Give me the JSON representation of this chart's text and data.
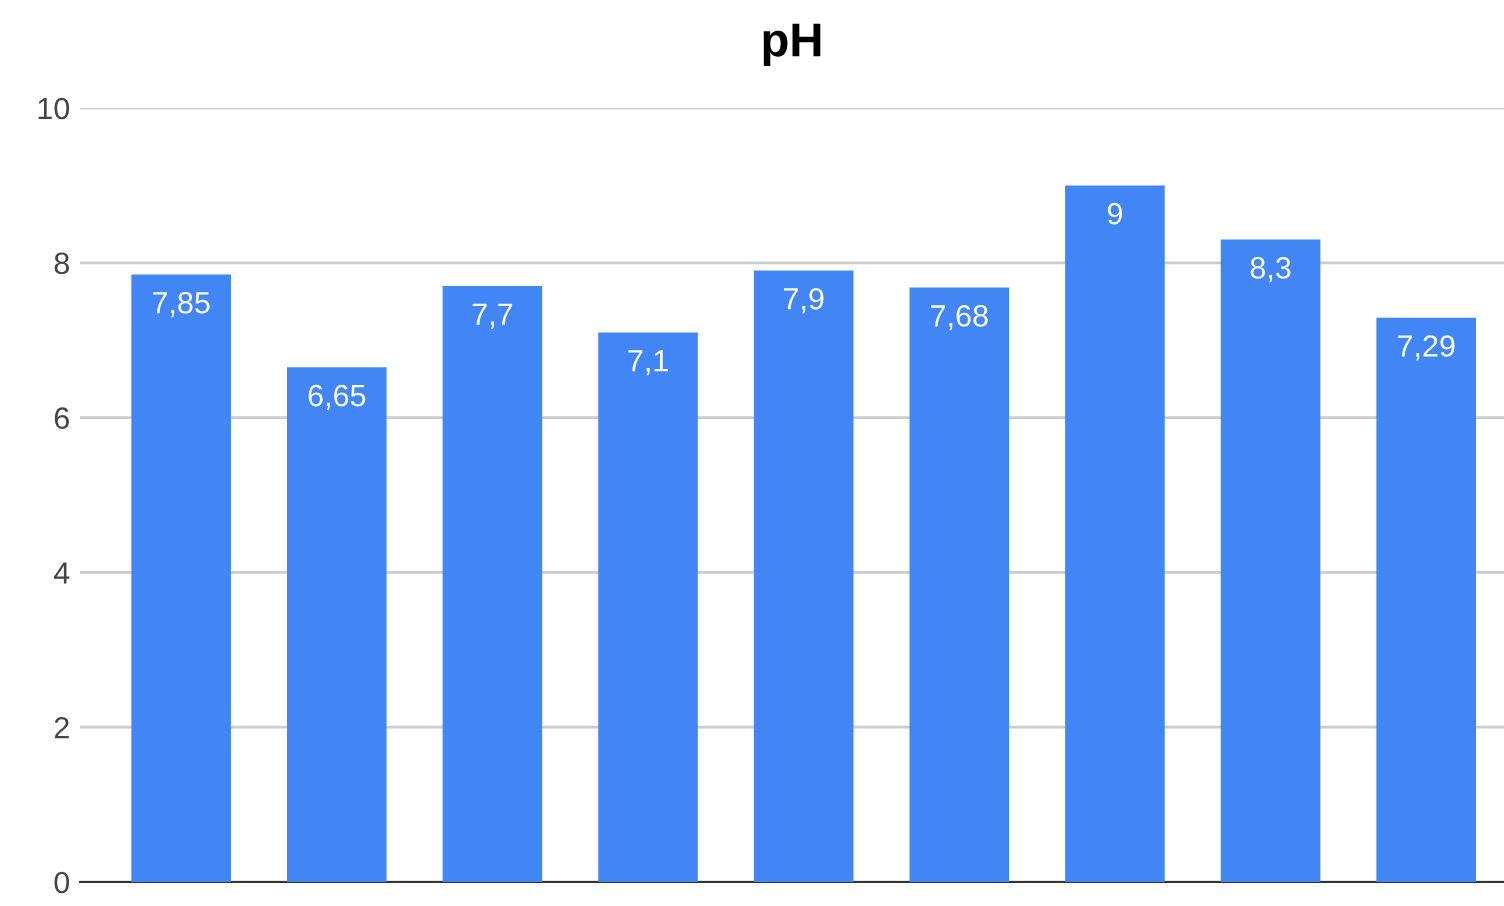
{
  "chart_data": {
    "type": "bar",
    "title": "pH",
    "categories": [
      null,
      null,
      null,
      null,
      null,
      null,
      null,
      null,
      null
    ],
    "values": [
      7.85,
      6.65,
      7.7,
      7.1,
      7.9,
      7.68,
      9,
      8.3,
      7.29
    ],
    "value_labels": [
      "7,85",
      "6,65",
      "7,7",
      "7,1",
      "7,9",
      "7,68",
      "9",
      "8,3",
      "7,29"
    ],
    "color": "#4285f4",
    "ylim": [
      0,
      10
    ],
    "yticks": [
      0,
      2,
      4,
      6,
      8,
      10
    ],
    "grid": "y"
  }
}
